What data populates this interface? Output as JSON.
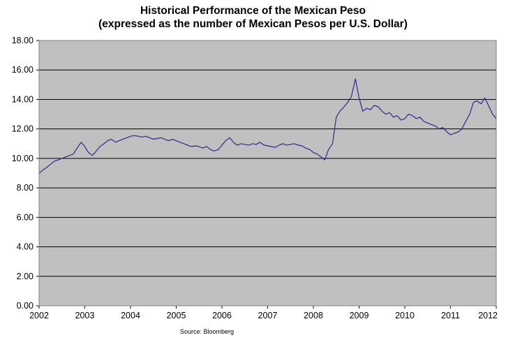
{
  "chart_data": {
    "type": "line",
    "title": "Historical Performance of the Mexican Peso",
    "subtitle": "(expressed as the number of Mexican Pesos per U.S. Dollar)",
    "xlabel": "",
    "ylabel": "",
    "xlim": [
      2002,
      2012
    ],
    "ylim": [
      0,
      18
    ],
    "x_ticks": [
      "2002",
      "2003",
      "2004",
      "2005",
      "2006",
      "2007",
      "2008",
      "2009",
      "2010",
      "2011",
      "2012"
    ],
    "y_ticks": [
      "0.00",
      "2.00",
      "4.00",
      "6.00",
      "8.00",
      "10.00",
      "12.00",
      "14.00",
      "16.00",
      "18.00"
    ],
    "grid": true,
    "legend": "none",
    "colors": {
      "line": "#2a2a8c",
      "plot_background": "#c0c0c0",
      "gridline": "#000000"
    },
    "series": [
      {
        "x": [
          2002.0,
          2002.08,
          2002.17,
          2002.25,
          2002.33,
          2002.42,
          2002.5,
          2002.58,
          2002.67,
          2002.75,
          2002.83,
          2002.92,
          2003.0,
          2003.08,
          2003.17,
          2003.25,
          2003.33,
          2003.42,
          2003.5,
          2003.58,
          2003.67,
          2003.75,
          2003.83,
          2003.92,
          2004.0,
          2004.08,
          2004.17,
          2004.25,
          2004.33,
          2004.42,
          2004.5,
          2004.58,
          2004.67,
          2004.75,
          2004.83,
          2004.92,
          2005.0,
          2005.08,
          2005.17,
          2005.25,
          2005.33,
          2005.42,
          2005.5,
          2005.58,
          2005.67,
          2005.75,
          2005.83,
          2005.92,
          2006.0,
          2006.08,
          2006.17,
          2006.25,
          2006.33,
          2006.42,
          2006.5,
          2006.58,
          2006.67,
          2006.75,
          2006.83,
          2006.92,
          2007.0,
          2007.08,
          2007.17,
          2007.25,
          2007.33,
          2007.42,
          2007.5,
          2007.58,
          2007.67,
          2007.75,
          2007.83,
          2007.92,
          2008.0,
          2008.08,
          2008.17,
          2008.25,
          2008.33,
          2008.42,
          2008.5,
          2008.58,
          2008.67,
          2008.75,
          2008.83,
          2008.92,
          2009.0,
          2009.08,
          2009.17,
          2009.25,
          2009.33,
          2009.42,
          2009.5,
          2009.58,
          2009.67,
          2009.75,
          2009.83,
          2009.92,
          2010.0,
          2010.08,
          2010.17,
          2010.25,
          2010.33,
          2010.42,
          2010.5,
          2010.58,
          2010.67,
          2010.75,
          2010.83,
          2010.92,
          2011.0,
          2011.08,
          2011.17,
          2011.25,
          2011.33,
          2011.42,
          2011.5,
          2011.58,
          2011.67,
          2011.75,
          2011.83,
          2011.92,
          2012.0
        ],
        "values": [
          9.0,
          9.2,
          9.4,
          9.6,
          9.8,
          9.9,
          10.0,
          10.1,
          10.2,
          10.3,
          10.7,
          11.1,
          10.8,
          10.4,
          10.2,
          10.5,
          10.8,
          11.0,
          11.2,
          11.3,
          11.1,
          11.2,
          11.3,
          11.4,
          11.5,
          11.55,
          11.5,
          11.45,
          11.5,
          11.4,
          11.3,
          11.35,
          11.4,
          11.3,
          11.2,
          11.3,
          11.2,
          11.1,
          11.0,
          10.9,
          10.8,
          10.85,
          10.8,
          10.7,
          10.8,
          10.6,
          10.5,
          10.6,
          10.9,
          11.2,
          11.4,
          11.1,
          10.9,
          11.0,
          10.95,
          10.9,
          11.0,
          10.95,
          11.1,
          10.9,
          10.85,
          10.8,
          10.75,
          10.9,
          11.0,
          10.9,
          10.95,
          11.0,
          10.9,
          10.85,
          10.7,
          10.6,
          10.4,
          10.3,
          10.1,
          9.9,
          10.6,
          11.0,
          12.8,
          13.2,
          13.5,
          13.8,
          14.2,
          15.4,
          14.1,
          13.2,
          13.4,
          13.3,
          13.6,
          13.5,
          13.2,
          13.0,
          13.1,
          12.8,
          12.9,
          12.6,
          12.7,
          13.0,
          12.9,
          12.7,
          12.8,
          12.5,
          12.4,
          12.3,
          12.2,
          12.0,
          12.1,
          11.8,
          11.6,
          11.7,
          11.8,
          12.0,
          12.5,
          13.0,
          13.8,
          13.9,
          13.7,
          14.1,
          13.6,
          13.0,
          12.7
        ]
      }
    ]
  },
  "source": "Source: Bloomberg"
}
